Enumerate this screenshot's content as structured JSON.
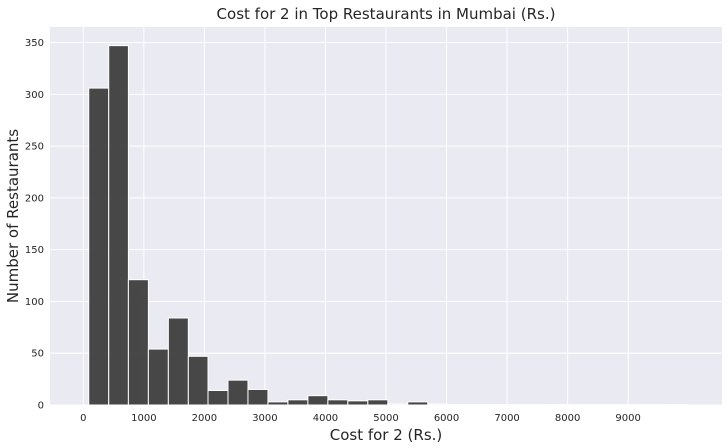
{
  "chart_data": {
    "type": "bar",
    "title": "Cost for 2 in Top Restaurants in Mumbai (Rs.)",
    "xlabel": "Cost for 2 (Rs.)",
    "ylabel": "Number of Restaurants",
    "xlim": [
      -550,
      10550
    ],
    "ylim": [
      0,
      365
    ],
    "xticks": [
      0,
      1000,
      2000,
      3000,
      4000,
      5000,
      6000,
      7000,
      8000,
      9000
    ],
    "xtick_labels": [
      "0",
      "1000",
      "2000",
      "3000",
      "4000",
      "5000",
      "6000",
      "7000",
      "8000",
      "9000"
    ],
    "yticks": [
      0,
      50,
      100,
      150,
      200,
      250,
      300,
      350
    ],
    "ytick_labels": [
      "0",
      "50",
      "100",
      "150",
      "200",
      "250",
      "300",
      "350"
    ],
    "grid": true,
    "bar_color": "#383838",
    "background_color": "#EAEAF2",
    "bins": [
      {
        "start": 90,
        "end": 420,
        "value": 306
      },
      {
        "start": 420,
        "end": 745,
        "value": 347
      },
      {
        "start": 745,
        "end": 1075,
        "value": 121
      },
      {
        "start": 1075,
        "end": 1405,
        "value": 54
      },
      {
        "start": 1405,
        "end": 1735,
        "value": 84
      },
      {
        "start": 1735,
        "end": 2060,
        "value": 47
      },
      {
        "start": 2060,
        "end": 2390,
        "value": 14
      },
      {
        "start": 2390,
        "end": 2720,
        "value": 24
      },
      {
        "start": 2720,
        "end": 3050,
        "value": 15
      },
      {
        "start": 3050,
        "end": 3380,
        "value": 3
      },
      {
        "start": 3380,
        "end": 3710,
        "value": 5
      },
      {
        "start": 3710,
        "end": 4040,
        "value": 9
      },
      {
        "start": 4040,
        "end": 4370,
        "value": 5
      },
      {
        "start": 4370,
        "end": 4700,
        "value": 4
      },
      {
        "start": 4700,
        "end": 5030,
        "value": 5
      },
      {
        "start": 5030,
        "end": 5360,
        "value": 1
      },
      {
        "start": 5360,
        "end": 5690,
        "value": 3
      },
      {
        "start": 5690,
        "end": 6020,
        "value": 1
      },
      {
        "start": 6020,
        "end": 6350,
        "value": 0.5
      },
      {
        "start": 6350,
        "end": 6680,
        "value": 0.5
      },
      {
        "start": 6680,
        "end": 7010,
        "value": 0.5
      },
      {
        "start": 7010,
        "end": 7340,
        "value": 0.3
      },
      {
        "start": 7340,
        "end": 7670,
        "value": 0.3
      },
      {
        "start": 7670,
        "end": 8000,
        "value": 0.5
      },
      {
        "start": 8000,
        "end": 8330,
        "value": 0.3
      },
      {
        "start": 8330,
        "end": 8660,
        "value": 0.3
      },
      {
        "start": 8660,
        "end": 8990,
        "value": 0.3
      },
      {
        "start": 8990,
        "end": 9320,
        "value": 0.3
      },
      {
        "start": 9320,
        "end": 9650,
        "value": 0.3
      },
      {
        "start": 9650,
        "end": 9980,
        "value": 0.5
      }
    ]
  }
}
